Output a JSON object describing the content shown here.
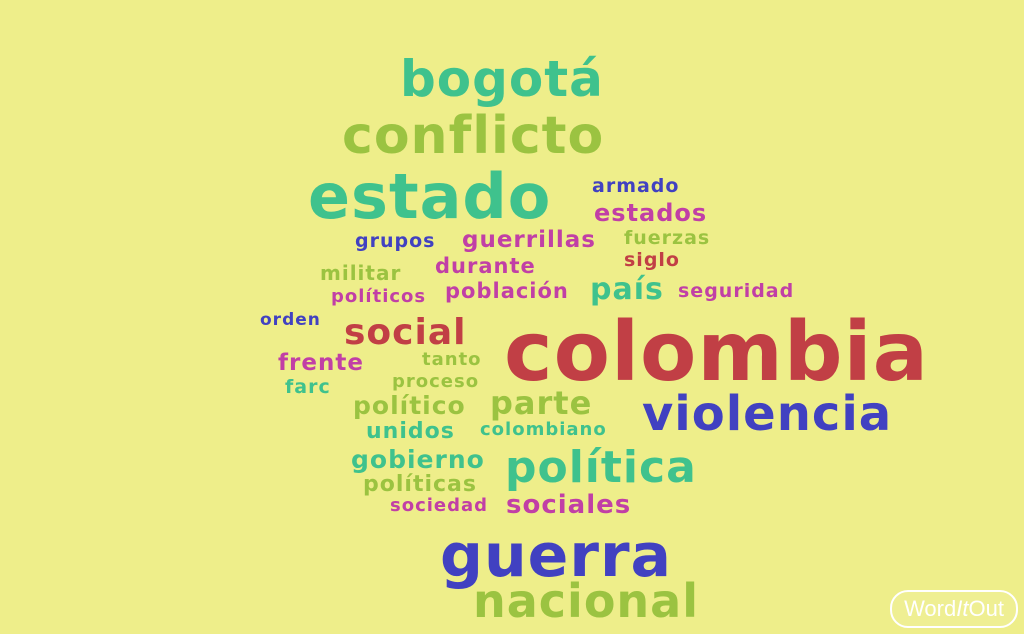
{
  "colors": {
    "background": "#eeee8a",
    "green": "#9bc341",
    "teal": "#3fc28d",
    "red": "#c13f45",
    "blue": "#4141c1",
    "magenta": "#c13fa6"
  },
  "words": [
    {
      "text": "bogotá",
      "color": "teal"
    },
    {
      "text": "conflicto",
      "color": "green"
    },
    {
      "text": "estado",
      "color": "teal"
    },
    {
      "text": "armado",
      "color": "blue"
    },
    {
      "text": "estados",
      "color": "magenta"
    },
    {
      "text": "grupos",
      "color": "blue"
    },
    {
      "text": "guerrillas",
      "color": "magenta"
    },
    {
      "text": "fuerzas",
      "color": "green"
    },
    {
      "text": "militar",
      "color": "green"
    },
    {
      "text": "durante",
      "color": "magenta"
    },
    {
      "text": "siglo",
      "color": "red"
    },
    {
      "text": "políticos",
      "color": "magenta"
    },
    {
      "text": "población",
      "color": "magenta"
    },
    {
      "text": "país",
      "color": "teal"
    },
    {
      "text": "seguridad",
      "color": "magenta"
    },
    {
      "text": "orden",
      "color": "blue"
    },
    {
      "text": "social",
      "color": "red"
    },
    {
      "text": "colombia",
      "color": "red"
    },
    {
      "text": "frente",
      "color": "magenta"
    },
    {
      "text": "tanto",
      "color": "green"
    },
    {
      "text": "farc",
      "color": "teal"
    },
    {
      "text": "proceso",
      "color": "green"
    },
    {
      "text": "político",
      "color": "green"
    },
    {
      "text": "parte",
      "color": "green"
    },
    {
      "text": "violencia",
      "color": "blue"
    },
    {
      "text": "unidos",
      "color": "teal"
    },
    {
      "text": "colombiano",
      "color": "teal"
    },
    {
      "text": "gobierno",
      "color": "teal"
    },
    {
      "text": "política",
      "color": "teal"
    },
    {
      "text": "políticas",
      "color": "green"
    },
    {
      "text": "sociedad",
      "color": "magenta"
    },
    {
      "text": "sociales",
      "color": "magenta"
    },
    {
      "text": "guerra",
      "color": "blue"
    },
    {
      "text": "nacional",
      "color": "green"
    }
  ],
  "logo": {
    "word": "Word",
    "it": "It",
    "out": "Out"
  }
}
